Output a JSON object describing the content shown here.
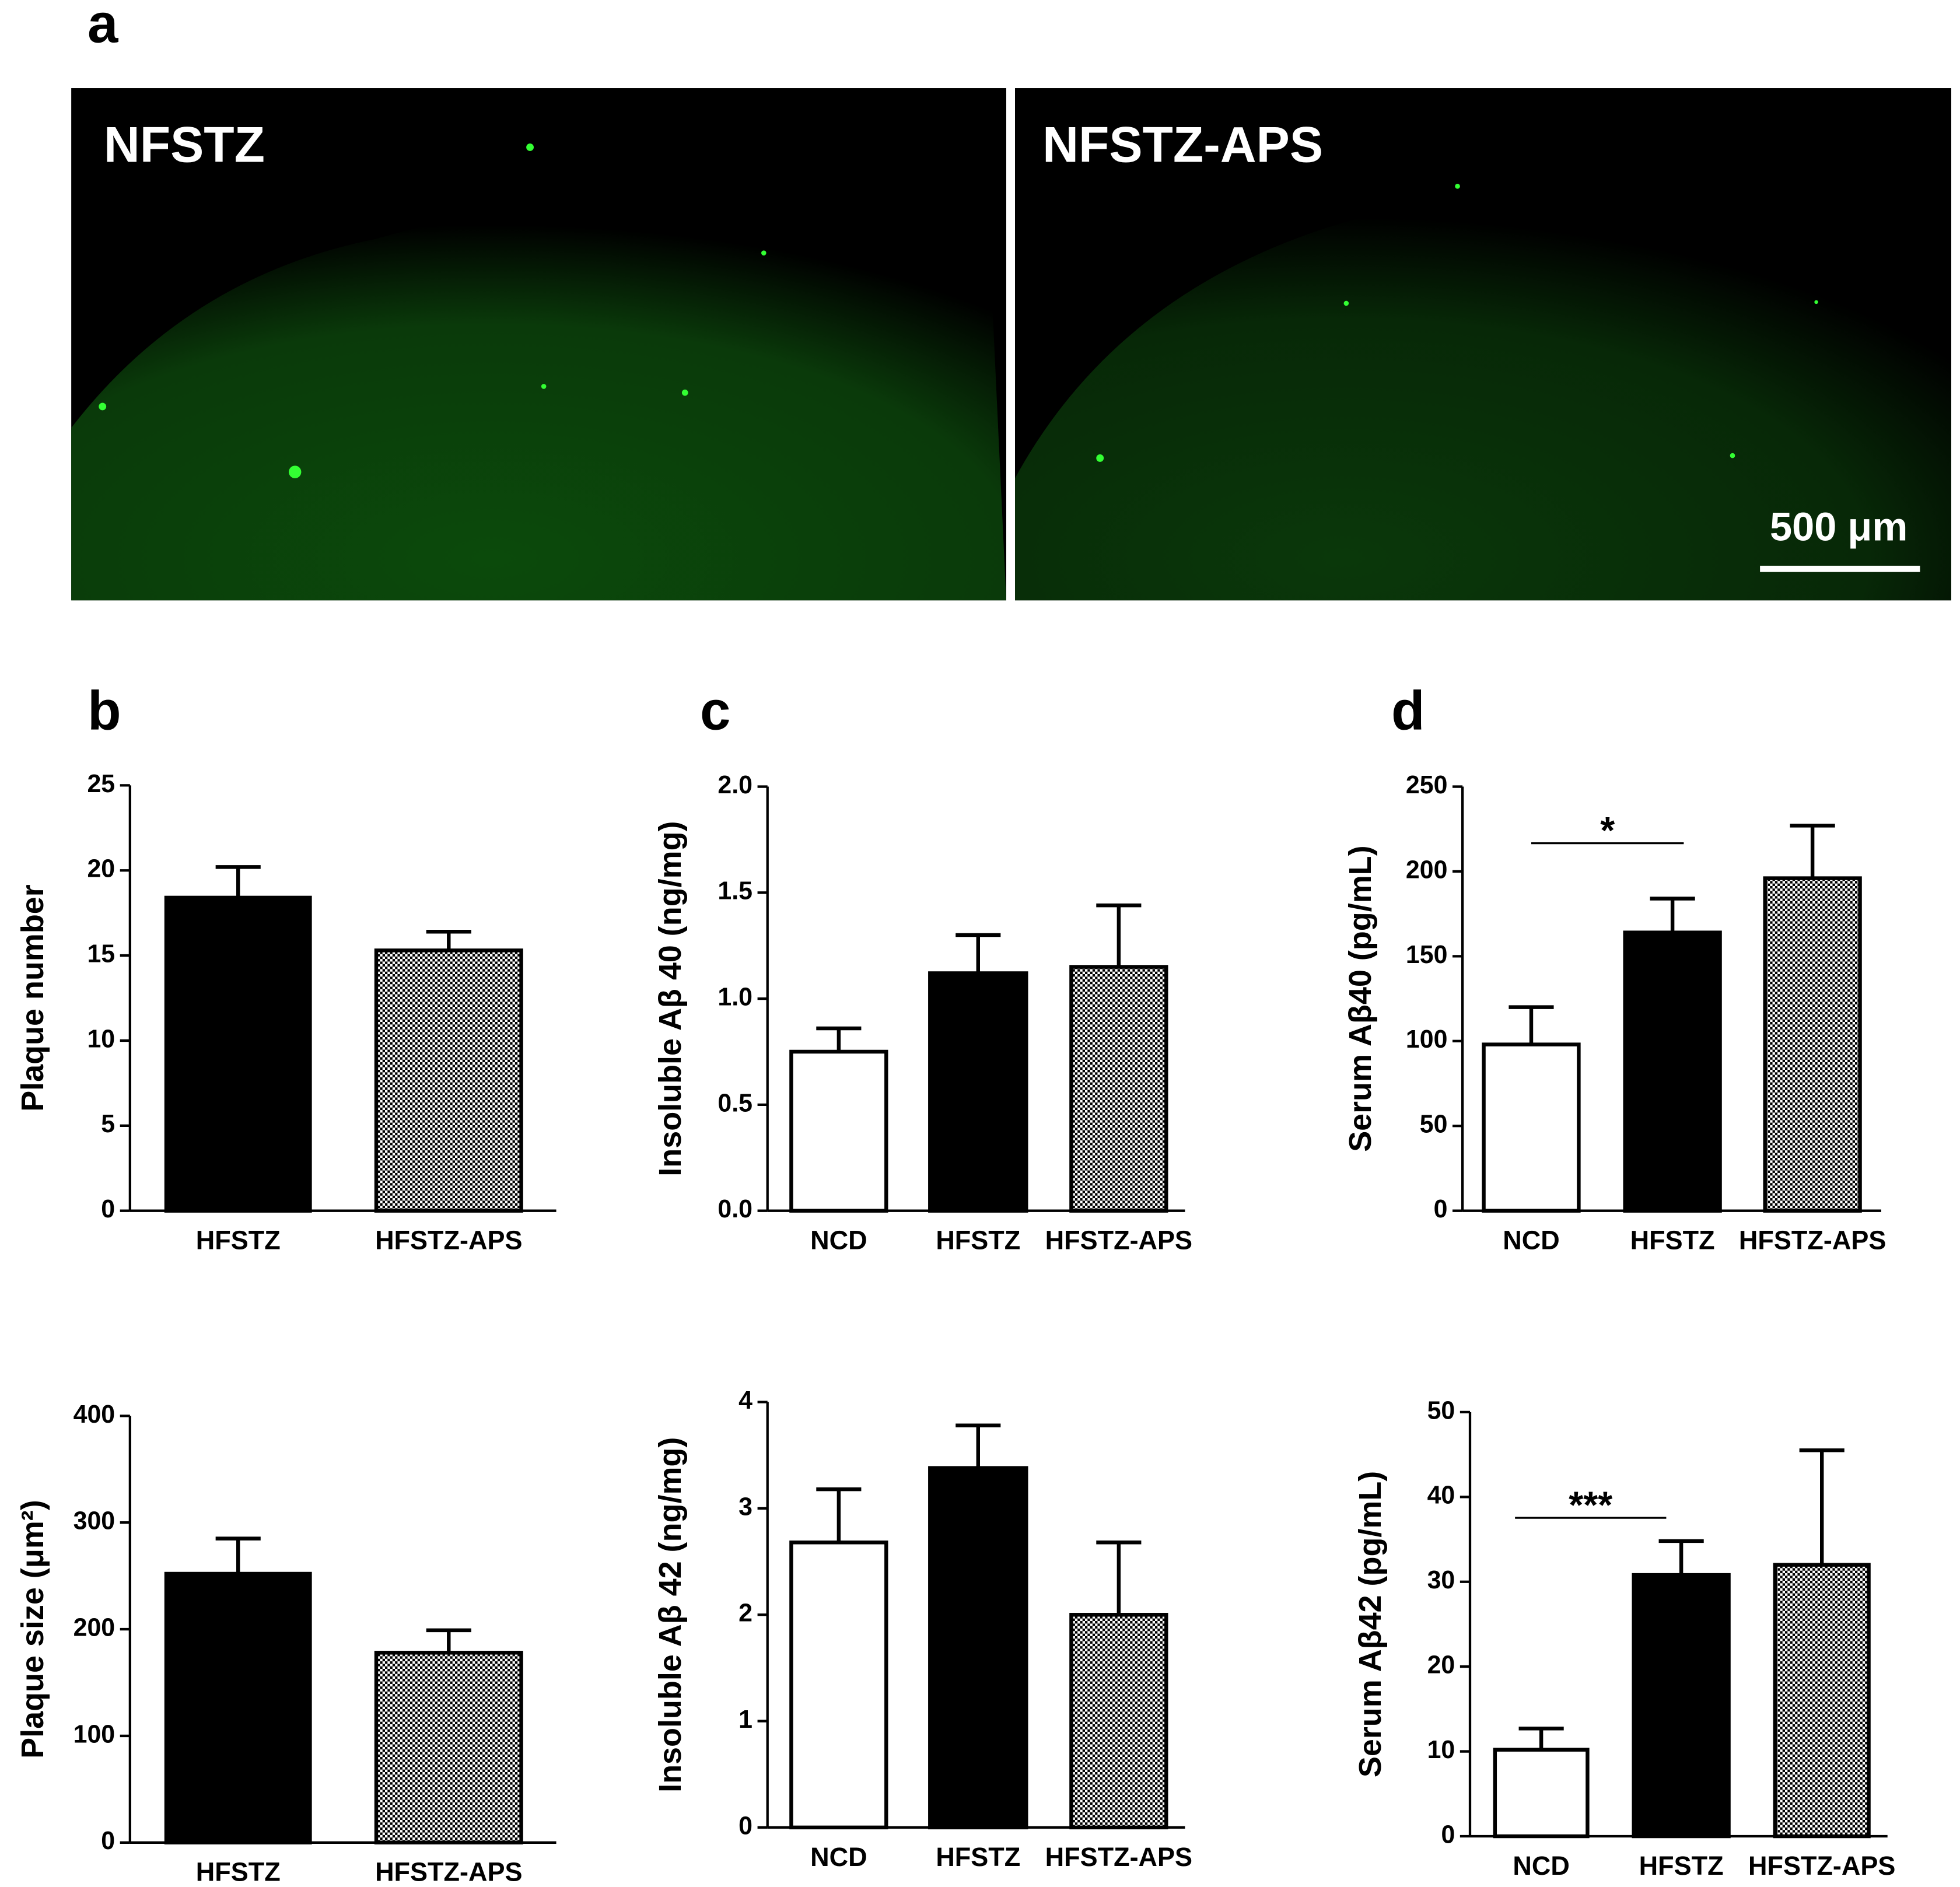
{
  "panel_labels": [
    "a",
    "b",
    "c",
    "d"
  ],
  "images": [
    {
      "label": "NFSTZ"
    },
    {
      "label": "NFSTZ-APS",
      "scale_bar": "500 μm"
    }
  ],
  "chart_data": [
    {
      "type": "bar",
      "ylabel": "Plaque number",
      "categories": [
        "HFSTZ",
        "HFSTZ-APS"
      ],
      "values": [
        18.4,
        15.3
      ],
      "errors": [
        1.8,
        1.1
      ],
      "bar_fills": [
        "#000000",
        "checker"
      ],
      "ylim": [
        0,
        25
      ],
      "yticks": [
        0,
        5,
        10,
        15,
        20,
        25
      ]
    },
    {
      "type": "bar",
      "ylabel": "Plaque size (μm²)",
      "categories": [
        "HFSTZ",
        "HFSTZ-APS"
      ],
      "values": [
        252,
        178
      ],
      "errors": [
        33,
        21
      ],
      "bar_fills": [
        "#000000",
        "checker"
      ],
      "ylim": [
        0,
        400
      ],
      "yticks": [
        0,
        100,
        200,
        300,
        400
      ]
    },
    {
      "type": "bar",
      "ylabel": "Insoluble Aβ 40 (ng/mg)",
      "categories": [
        "NCD",
        "HFSTZ",
        "HFSTZ-APS"
      ],
      "values": [
        0.75,
        1.12,
        1.15
      ],
      "errors": [
        0.11,
        0.18,
        0.29
      ],
      "bar_fills": [
        "#ffffff",
        "#000000",
        "checker"
      ],
      "ylim": [
        0,
        2
      ],
      "yticks": [
        {
          "value": 0,
          "label": "0.0"
        },
        0.5,
        {
          "value": 1,
          "label": "1.0"
        },
        1.5,
        {
          "value": 2,
          "label": "2.0"
        }
      ]
    },
    {
      "type": "bar",
      "ylabel": "Insoluble Aβ 42 (ng/mg)",
      "categories": [
        "NCD",
        "HFSTZ",
        "HFSTZ-APS"
      ],
      "values": [
        2.68,
        3.38,
        2.0
      ],
      "errors": [
        0.5,
        0.4,
        0.68
      ],
      "bar_fills": [
        "#ffffff",
        "#000000",
        "checker"
      ],
      "ylim": [
        0,
        4
      ],
      "yticks": [
        0,
        1,
        2,
        3,
        4
      ]
    },
    {
      "type": "bar",
      "ylabel": "Serum Aβ40 (pg/mL)",
      "categories": [
        "NCD",
        "HFSTZ",
        "HFSTZ-APS"
      ],
      "values": [
        98,
        164,
        196
      ],
      "errors": [
        22,
        20,
        31
      ],
      "bar_fills": [
        "#ffffff",
        "#000000",
        "checker"
      ],
      "ylim": [
        0,
        250
      ],
      "yticks": [
        0,
        50,
        100,
        150,
        200,
        250
      ],
      "annotation": "*"
    },
    {
      "type": "bar",
      "ylabel": "Serum Aβ42 (pg/mL)",
      "categories": [
        "NCD",
        "HFSTZ",
        "HFSTZ-APS"
      ],
      "values": [
        10.2,
        30.8,
        32.0
      ],
      "errors": [
        2.5,
        4,
        13.5
      ],
      "bar_fills": [
        "#ffffff",
        "#000000",
        "checker"
      ],
      "ylim": [
        0,
        50
      ],
      "yticks": [
        0,
        10,
        20,
        30,
        40,
        50
      ],
      "annotation": "***"
    }
  ]
}
